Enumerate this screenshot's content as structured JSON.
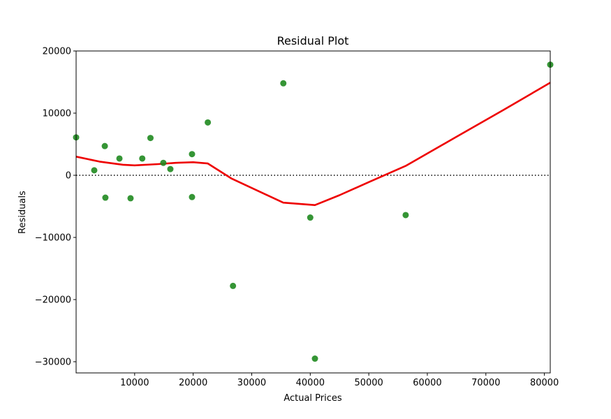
{
  "chart_data": {
    "type": "scatter",
    "title": "Residual Plot",
    "xlabel": "Actual Prices",
    "ylabel": "Residuals",
    "xlim": [
      0,
      81000
    ],
    "ylim": [
      -31800,
      20000
    ],
    "x_ticks": [
      10000,
      20000,
      30000,
      40000,
      50000,
      60000,
      70000,
      80000
    ],
    "x_tick_labels": [
      "10000",
      "20000",
      "30000",
      "40000",
      "50000",
      "60000",
      "70000",
      "80000"
    ],
    "y_ticks": [
      20000,
      10000,
      0,
      -10000,
      -20000,
      -30000
    ],
    "y_tick_labels": [
      "20000",
      "10000",
      "0",
      "−10000",
      "−20000",
      "−30000"
    ],
    "grid": false,
    "reference_line": {
      "y": 0,
      "style": "dotted",
      "color": "#000000"
    },
    "points": {
      "color": "#1f8a1f",
      "x": [
        0,
        3100,
        4900,
        5000,
        7400,
        9300,
        11300,
        12700,
        14900,
        16100,
        19800,
        19800,
        22500,
        26800,
        35400,
        40000,
        40800,
        56300,
        81000
      ],
      "y": [
        6100,
        800,
        4700,
        -3600,
        2700,
        -3700,
        2700,
        6000,
        2000,
        1000,
        3400,
        -3500,
        8500,
        -17800,
        14800,
        -6800,
        -29500,
        -6400,
        17800
      ]
    },
    "trend": {
      "color": "#ee0000",
      "x": [
        0,
        4000,
        8000,
        10000,
        14000,
        17000,
        20000,
        22500,
        26500,
        35400,
        40800,
        45000,
        50000,
        56300,
        65000,
        73000,
        81000
      ],
      "y": [
        3000,
        2200,
        1700,
        1600,
        1800,
        2000,
        2100,
        1900,
        -500,
        -4400,
        -4800,
        -3200,
        -1100,
        1500,
        6200,
        10500,
        14900
      ]
    }
  }
}
